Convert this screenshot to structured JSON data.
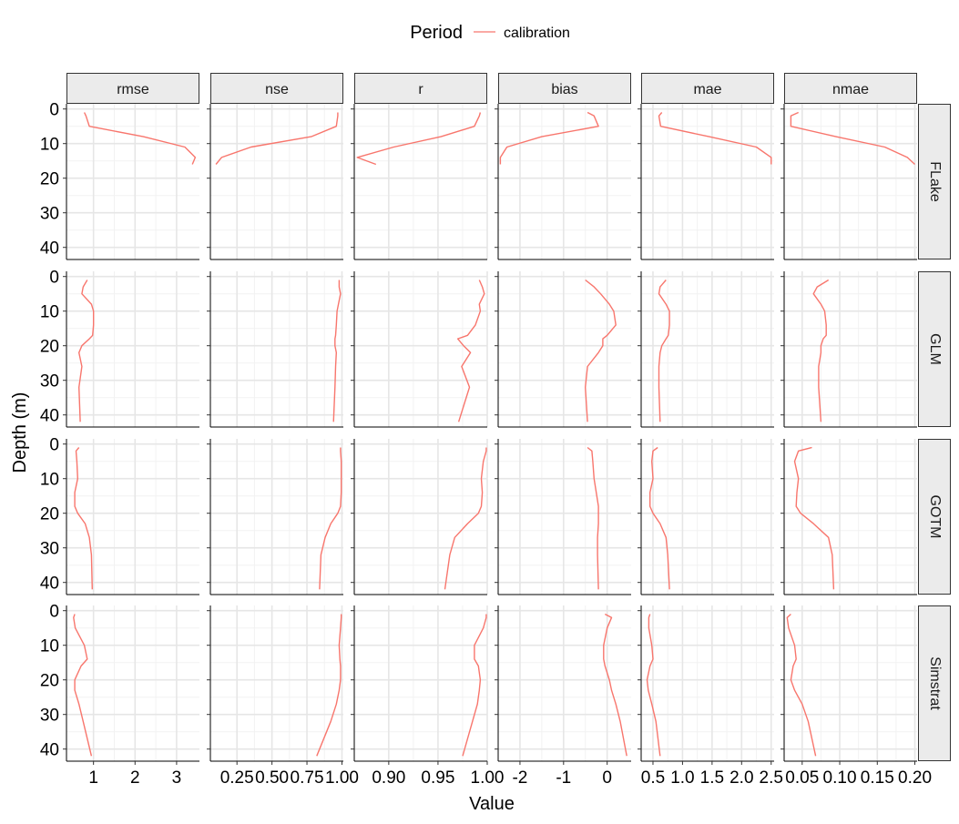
{
  "chart_data": {
    "type": "line",
    "layout": "facet_grid",
    "xlabel": "Value",
    "ylabel": "Depth (m)",
    "y_reversed": true,
    "ylim": [
      -1.5,
      43.5
    ],
    "y_ticks": [
      0,
      10,
      20,
      30,
      40
    ],
    "grid": true,
    "legend": {
      "title": "Period",
      "position": "top",
      "entries": [
        {
          "label": "calibration",
          "color": "#F8766D"
        }
      ]
    },
    "columns": [
      {
        "metric": "rmse",
        "xlim": [
          0.35,
          3.55
        ],
        "ticks": [
          1,
          2,
          3
        ],
        "tick_labels": [
          "1",
          "2",
          "3"
        ]
      },
      {
        "metric": "nse",
        "xlim": [
          0.06,
          1.01
        ],
        "ticks": [
          0.25,
          0.5,
          0.75,
          1.0
        ],
        "tick_labels": [
          "0.25",
          "0.50",
          "0.75",
          "1.00"
        ]
      },
      {
        "metric": "r",
        "xlim": [
          0.865,
          1.0
        ],
        "ticks": [
          0.9,
          0.95,
          1.0
        ],
        "tick_labels": [
          "0.90",
          "0.95",
          "1.00"
        ]
      },
      {
        "metric": "bias",
        "xlim": [
          -2.5,
          0.55
        ],
        "ticks": [
          -2,
          -1,
          0
        ],
        "tick_labels": [
          "-2",
          "-1",
          "0"
        ]
      },
      {
        "metric": "mae",
        "xlim": [
          0.3,
          2.55
        ],
        "ticks": [
          0.5,
          1.0,
          1.5,
          2.0,
          2.5
        ],
        "tick_labels": [
          "0.5",
          "1.0",
          "1.5",
          "2.0",
          "2.5"
        ]
      },
      {
        "metric": "nmae",
        "xlim": [
          0.026,
          0.203
        ],
        "ticks": [
          0.05,
          0.1,
          0.15,
          0.2
        ],
        "tick_labels": [
          "0.05",
          "0.10",
          "0.15",
          "0.20"
        ]
      }
    ],
    "rows": [
      "FLake",
      "GLM",
      "GOTM",
      "Simstrat"
    ],
    "series_color": "#F8766D",
    "series": [
      {
        "name": "calibration",
        "model": "FLake",
        "metric": "rmse",
        "depth": [
          1,
          2,
          5,
          8,
          11,
          14,
          16
        ],
        "value": [
          0.78,
          0.82,
          0.9,
          2.2,
          3.2,
          3.45,
          3.38
        ]
      },
      {
        "name": "calibration",
        "model": "FLake",
        "metric": "nse",
        "depth": [
          1,
          2,
          5,
          8,
          11,
          14,
          16
        ],
        "value": [
          0.97,
          0.97,
          0.96,
          0.78,
          0.35,
          0.14,
          0.1
        ]
      },
      {
        "name": "calibration",
        "model": "FLake",
        "metric": "r",
        "depth": [
          1,
          2,
          5,
          8,
          11,
          14,
          16
        ],
        "value": [
          0.993,
          0.992,
          0.987,
          0.953,
          0.905,
          0.868,
          0.887
        ]
      },
      {
        "name": "calibration",
        "model": "FLake",
        "metric": "bias",
        "depth": [
          1,
          2,
          5,
          8,
          11,
          14,
          16
        ],
        "value": [
          -0.45,
          -0.3,
          -0.2,
          -1.5,
          -2.3,
          -2.45,
          -2.45
        ]
      },
      {
        "name": "calibration",
        "model": "FLake",
        "metric": "mae",
        "depth": [
          1,
          2,
          5,
          8,
          11,
          14,
          16
        ],
        "value": [
          0.65,
          0.6,
          0.63,
          1.45,
          2.25,
          2.5,
          2.5
        ]
      },
      {
        "name": "calibration",
        "model": "FLake",
        "metric": "nmae",
        "depth": [
          1,
          2,
          5,
          8,
          11,
          14,
          16
        ],
        "value": [
          0.045,
          0.035,
          0.035,
          0.095,
          0.16,
          0.19,
          0.2
        ]
      },
      {
        "name": "calibration",
        "model": "GLM",
        "metric": "rmse",
        "depth": [
          1,
          3,
          5,
          8,
          10,
          14,
          17,
          18,
          20,
          22,
          26,
          32,
          42
        ],
        "value": [
          0.85,
          0.75,
          0.72,
          0.95,
          1.0,
          1.0,
          0.98,
          0.9,
          0.72,
          0.65,
          0.72,
          0.65,
          0.68
        ]
      },
      {
        "name": "calibration",
        "model": "GLM",
        "metric": "nse",
        "depth": [
          1,
          3,
          5,
          8,
          10,
          14,
          17,
          18,
          20,
          22,
          26,
          32,
          42
        ],
        "value": [
          0.98,
          0.98,
          0.99,
          0.975,
          0.965,
          0.96,
          0.955,
          0.95,
          0.95,
          0.96,
          0.955,
          0.95,
          0.94
        ]
      },
      {
        "name": "calibration",
        "model": "GLM",
        "metric": "r",
        "depth": [
          1,
          3,
          5,
          8,
          10,
          14,
          17,
          18,
          20,
          22,
          26,
          32,
          42
        ],
        "value": [
          0.992,
          0.995,
          0.997,
          0.992,
          0.993,
          0.988,
          0.98,
          0.97,
          0.976,
          0.983,
          0.974,
          0.982,
          0.971
        ]
      },
      {
        "name": "calibration",
        "model": "GLM",
        "metric": "bias",
        "depth": [
          1,
          3,
          5,
          8,
          10,
          14,
          17,
          18,
          20,
          22,
          26,
          32,
          42
        ],
        "value": [
          -0.5,
          -0.3,
          -0.15,
          0.05,
          0.15,
          0.2,
          0.0,
          -0.1,
          -0.1,
          -0.2,
          -0.45,
          -0.5,
          -0.45
        ]
      },
      {
        "name": "calibration",
        "model": "GLM",
        "metric": "mae",
        "depth": [
          1,
          3,
          5,
          8,
          10,
          14,
          17,
          18,
          20,
          22,
          26,
          32,
          42
        ],
        "value": [
          0.72,
          0.62,
          0.6,
          0.72,
          0.78,
          0.78,
          0.76,
          0.72,
          0.65,
          0.62,
          0.6,
          0.6,
          0.62
        ]
      },
      {
        "name": "calibration",
        "model": "GLM",
        "metric": "nmae",
        "depth": [
          1,
          3,
          5,
          8,
          10,
          14,
          17,
          18,
          20,
          22,
          26,
          32,
          42
        ],
        "value": [
          0.085,
          0.07,
          0.065,
          0.075,
          0.08,
          0.082,
          0.082,
          0.078,
          0.075,
          0.075,
          0.072,
          0.072,
          0.075
        ]
      },
      {
        "name": "calibration",
        "model": "GOTM",
        "metric": "rmse",
        "depth": [
          1,
          2,
          5,
          10,
          14,
          18,
          20,
          23,
          27,
          32,
          42
        ],
        "value": [
          0.65,
          0.58,
          0.6,
          0.62,
          0.55,
          0.55,
          0.62,
          0.8,
          0.9,
          0.95,
          0.97
        ]
      },
      {
        "name": "calibration",
        "model": "GOTM",
        "metric": "nse",
        "depth": [
          1,
          2,
          5,
          10,
          14,
          18,
          20,
          23,
          27,
          32,
          42
        ],
        "value": [
          0.99,
          0.99,
          0.995,
          0.995,
          0.995,
          0.99,
          0.97,
          0.92,
          0.88,
          0.85,
          0.84
        ]
      },
      {
        "name": "calibration",
        "model": "GOTM",
        "metric": "r",
        "depth": [
          1,
          2,
          5,
          10,
          14,
          18,
          20,
          23,
          27,
          32,
          42
        ],
        "value": [
          0.999,
          0.999,
          0.996,
          0.994,
          0.995,
          0.994,
          0.991,
          0.98,
          0.967,
          0.962,
          0.957
        ]
      },
      {
        "name": "calibration",
        "model": "GOTM",
        "metric": "bias",
        "depth": [
          1,
          2,
          5,
          10,
          14,
          18,
          20,
          23,
          27,
          32,
          42
        ],
        "value": [
          -0.45,
          -0.35,
          -0.33,
          -0.3,
          -0.25,
          -0.2,
          -0.2,
          -0.2,
          -0.22,
          -0.22,
          -0.2
        ]
      },
      {
        "name": "calibration",
        "model": "GOTM",
        "metric": "mae",
        "depth": [
          1,
          2,
          5,
          10,
          14,
          18,
          20,
          23,
          27,
          32,
          42
        ],
        "value": [
          0.58,
          0.5,
          0.48,
          0.5,
          0.45,
          0.45,
          0.5,
          0.62,
          0.72,
          0.75,
          0.78
        ]
      },
      {
        "name": "calibration",
        "model": "GOTM",
        "metric": "nmae",
        "depth": [
          1,
          2,
          5,
          10,
          14,
          18,
          20,
          23,
          27,
          32,
          42
        ],
        "value": [
          0.063,
          0.045,
          0.04,
          0.045,
          0.043,
          0.042,
          0.048,
          0.065,
          0.085,
          0.09,
          0.092
        ]
      },
      {
        "name": "calibration",
        "model": "Simstrat",
        "metric": "rmse",
        "depth": [
          1,
          2,
          5,
          10,
          14,
          16,
          20,
          23,
          27,
          32,
          42
        ],
        "value": [
          0.55,
          0.52,
          0.56,
          0.78,
          0.85,
          0.7,
          0.55,
          0.55,
          0.65,
          0.75,
          0.95
        ]
      },
      {
        "name": "calibration",
        "model": "Simstrat",
        "metric": "nse",
        "depth": [
          1,
          2,
          5,
          10,
          14,
          16,
          20,
          23,
          27,
          32,
          42
        ],
        "value": [
          0.995,
          0.995,
          0.99,
          0.98,
          0.985,
          0.99,
          0.99,
          0.98,
          0.96,
          0.92,
          0.82
        ]
      },
      {
        "name": "calibration",
        "model": "Simstrat",
        "metric": "r",
        "depth": [
          1,
          2,
          5,
          10,
          14,
          16,
          20,
          23,
          27,
          32,
          42
        ],
        "value": [
          0.999,
          0.999,
          0.996,
          0.987,
          0.987,
          0.991,
          0.993,
          0.992,
          0.99,
          0.985,
          0.975
        ]
      },
      {
        "name": "calibration",
        "model": "Simstrat",
        "metric": "bias",
        "depth": [
          1,
          2,
          5,
          10,
          14,
          16,
          20,
          23,
          27,
          32,
          42
        ],
        "value": [
          -0.05,
          0.1,
          0.0,
          -0.08,
          -0.08,
          -0.05,
          0.05,
          0.1,
          0.2,
          0.3,
          0.45
        ]
      },
      {
        "name": "calibration",
        "model": "Simstrat",
        "metric": "mae",
        "depth": [
          1,
          2,
          5,
          10,
          14,
          16,
          20,
          23,
          27,
          32,
          42
        ],
        "value": [
          0.45,
          0.43,
          0.43,
          0.48,
          0.5,
          0.45,
          0.4,
          0.42,
          0.48,
          0.55,
          0.62
        ]
      },
      {
        "name": "calibration",
        "model": "Simstrat",
        "metric": "nmae",
        "depth": [
          1,
          2,
          5,
          10,
          14,
          16,
          20,
          23,
          27,
          32,
          42
        ],
        "value": [
          0.035,
          0.03,
          0.032,
          0.04,
          0.042,
          0.038,
          0.035,
          0.04,
          0.05,
          0.058,
          0.068
        ]
      }
    ]
  }
}
